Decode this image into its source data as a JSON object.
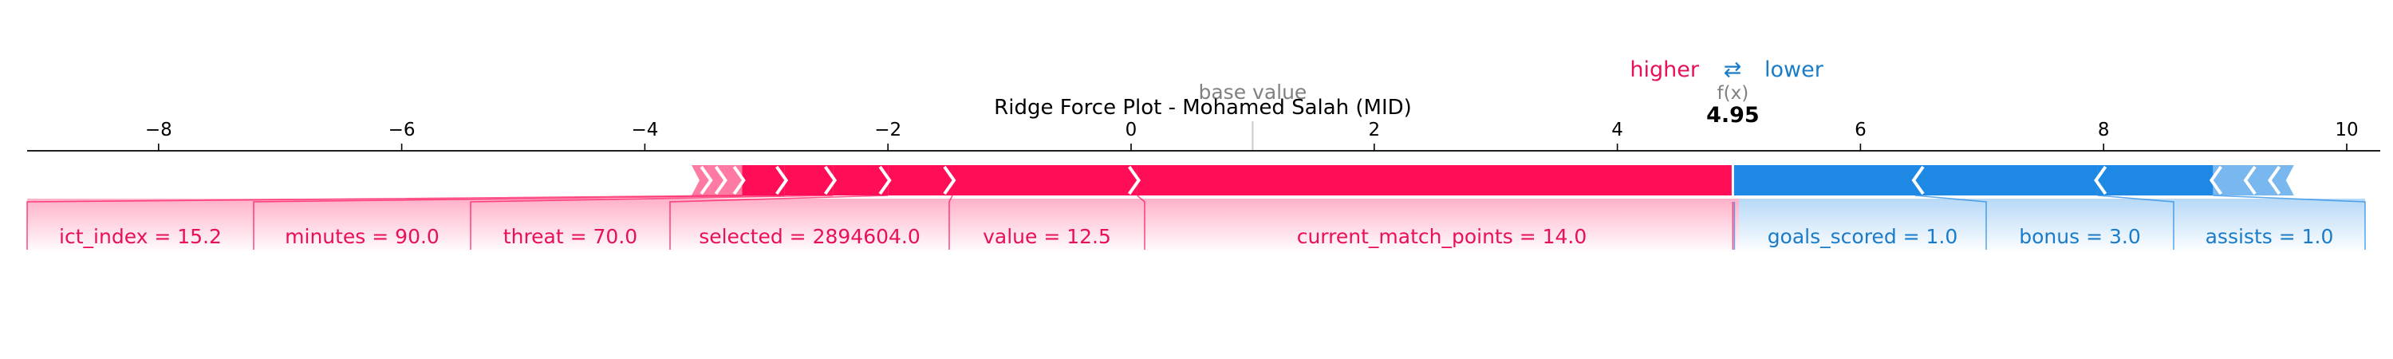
{
  "chart_data": {
    "type": "force",
    "title": "Ridge Force Plot - Mohamed Salah (MID)",
    "base_value_label": "base value",
    "base_value": 1.0,
    "fx_label": "f(x)",
    "fx_value": 4.95,
    "fx_value_text": "4.95",
    "legend": {
      "higher_label": "higher",
      "arrow_glyph": "⇄",
      "lower_label": "lower"
    },
    "xlim": [
      -10.9,
      10.2
    ],
    "xticks": [
      {
        "value": -8,
        "label": "−8"
      },
      {
        "value": -6,
        "label": "−6"
      },
      {
        "value": -4,
        "label": "−4"
      },
      {
        "value": -2,
        "label": "−2"
      },
      {
        "value": 0,
        "label": "0"
      },
      {
        "value": 2,
        "label": "2"
      },
      {
        "value": 4,
        "label": "4"
      },
      {
        "value": 6,
        "label": "6"
      },
      {
        "value": 8,
        "label": "8"
      },
      {
        "value": 10,
        "label": "10"
      }
    ],
    "positive_features": [
      {
        "label": "current_match_points = 14.0",
        "from": 0.05,
        "to": 4.95
      },
      {
        "label": "value = 12.5",
        "from": -1.47,
        "to": 0.05
      },
      {
        "label": "selected = 2894604.0",
        "from": -2.0,
        "to": -1.47
      },
      {
        "label": "threat = 70.0",
        "from": -2.45,
        "to": -2.0
      },
      {
        "label": "minutes = 90.0",
        "from": -2.85,
        "to": -2.45
      },
      {
        "label": "ict_index = 15.2",
        "from": -3.2,
        "to": -2.85
      },
      {
        "label": "",
        "from": -3.35,
        "to": -3.2
      },
      {
        "label": "",
        "from": -3.47,
        "to": -3.35
      },
      {
        "label": "",
        "from": -3.55,
        "to": -3.47
      }
    ],
    "negative_features": [
      {
        "label": "goals_scored = 1.0",
        "from": 4.95,
        "to": 6.45
      },
      {
        "label": "bonus = 3.0",
        "from": 6.45,
        "to": 7.95
      },
      {
        "label": "assists = 1.0",
        "from": 7.95,
        "to": 8.9
      },
      {
        "label": "",
        "from": 8.9,
        "to": 9.18
      },
      {
        "label": "",
        "from": 9.18,
        "to": 9.38
      },
      {
        "label": "",
        "from": 9.38,
        "to": 9.5
      }
    ],
    "colors": {
      "positive": "#ff0d57",
      "negative": "#1e88e5",
      "positive_text": "#e8105a",
      "negative_text": "#1a7cc8",
      "axis": "#000000",
      "base_line": "#cccccc",
      "separator": "#ffffff"
    }
  }
}
